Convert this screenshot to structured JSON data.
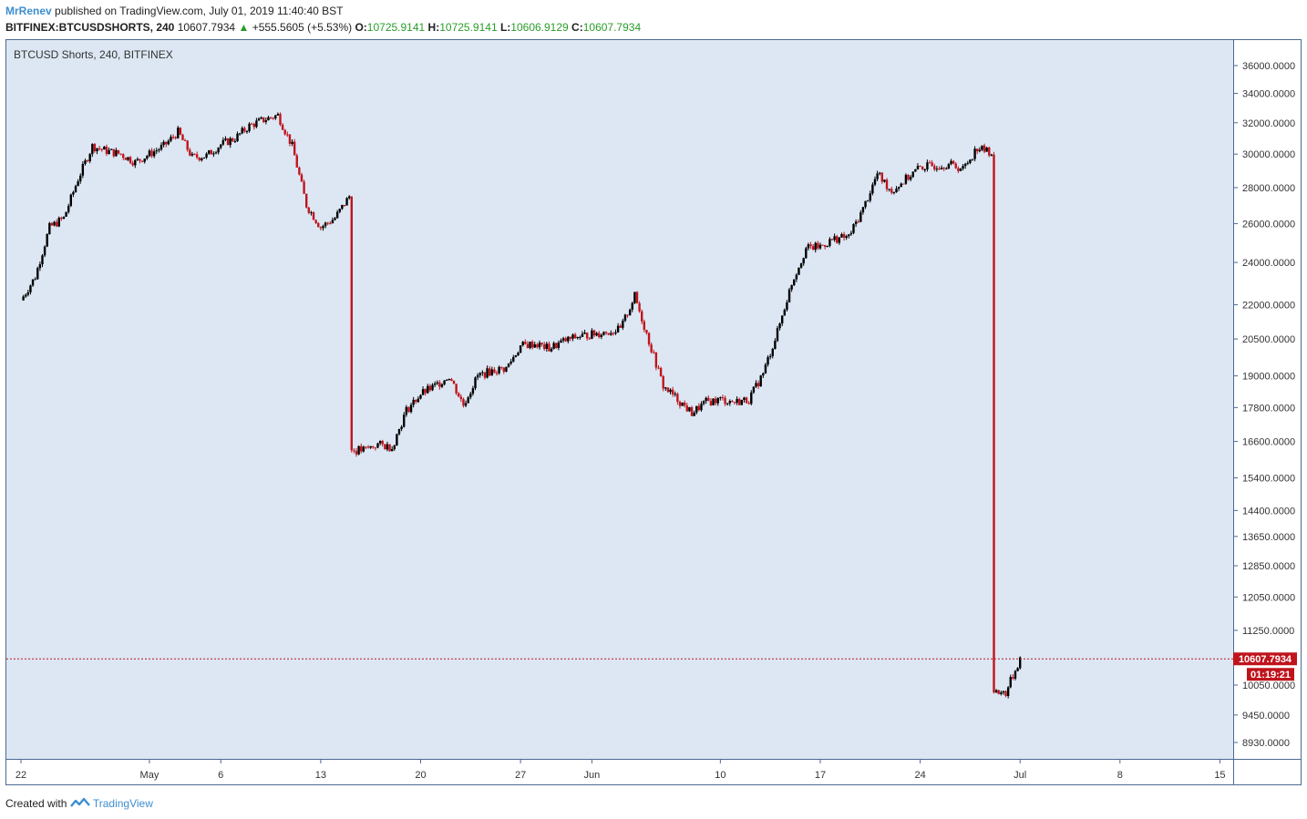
{
  "header": {
    "author": "MrRenev",
    "published_text": "published on TradingView.com, July 01, 2019 11:40:40 BST",
    "symbol": "BITFINEX:BTCUSDSHORTS, 240",
    "last_price": "10607.7934",
    "change": "+555.5605 (+5.53%)",
    "open_label": "O:",
    "open": "10725.9141",
    "high_label": "H:",
    "high": "10725.9141",
    "low_label": "L:",
    "low": "10606.9129",
    "close_label": "C:",
    "close": "10607.7934"
  },
  "footer": {
    "created_with": "Created with",
    "brand": "TradingView"
  },
  "chart_data": {
    "type": "candlestick",
    "title": "BTCUSD Shorts, 240, BITFINEX",
    "y_scale": "log",
    "ylim": [
      8600,
      37500
    ],
    "y_ticks": [
      "36000.0000",
      "34000.0000",
      "32000.0000",
      "30000.0000",
      "28000.0000",
      "26000.0000",
      "24000.0000",
      "22000.0000",
      "20500.0000",
      "19000.0000",
      "17800.0000",
      "16600.0000",
      "15400.0000",
      "14400.0000",
      "13650.0000",
      "12850.0000",
      "12050.0000",
      "11250.0000",
      "10050.0000",
      "9450.0000",
      "8930.0000"
    ],
    "x_ticks": [
      "22",
      "May",
      "6",
      "13",
      "20",
      "27",
      "Jun",
      "10",
      "17",
      "24",
      "Jul",
      "8",
      "15"
    ],
    "price_label": "10607.7934",
    "countdown_label": "01:19:21",
    "colors": {
      "up": "#000000",
      "down": "#c0141c",
      "background": "#dce7f3",
      "last_price_line": "#c0141c"
    },
    "series": [
      {
        "date": "2019-04-22",
        "close": 22200
      },
      {
        "date": "2019-04-23",
        "close": 23300
      },
      {
        "date": "2019-04-24",
        "close": 25800
      },
      {
        "date": "2019-04-25",
        "close": 26300
      },
      {
        "date": "2019-04-26",
        "close": 28500
      },
      {
        "date": "2019-04-27",
        "close": 30500
      },
      {
        "date": "2019-04-28",
        "close": 30200
      },
      {
        "date": "2019-04-29",
        "close": 30000
      },
      {
        "date": "2019-04-30",
        "close": 29500
      },
      {
        "date": "2019-05-01",
        "close": 30000
      },
      {
        "date": "2019-05-02",
        "close": 30500
      },
      {
        "date": "2019-05-03",
        "close": 31400
      },
      {
        "date": "2019-05-04",
        "close": 29800
      },
      {
        "date": "2019-05-05",
        "close": 29900
      },
      {
        "date": "2019-05-06",
        "close": 30600
      },
      {
        "date": "2019-05-07",
        "close": 31000
      },
      {
        "date": "2019-05-08",
        "close": 31800
      },
      {
        "date": "2019-05-09",
        "close": 32200
      },
      {
        "date": "2019-05-10",
        "close": 32500
      },
      {
        "date": "2019-05-11",
        "close": 30500
      },
      {
        "date": "2019-05-12",
        "close": 27000
      },
      {
        "date": "2019-05-13",
        "close": 25800
      },
      {
        "date": "2019-05-14",
        "close": 26300
      },
      {
        "date": "2019-05-15",
        "close": 27500
      },
      {
        "date": "2019-05-16",
        "close": 16300
      },
      {
        "date": "2019-05-17",
        "close": 16500
      },
      {
        "date": "2019-05-18",
        "close": 16400
      },
      {
        "date": "2019-05-19",
        "close": 17700
      },
      {
        "date": "2019-05-20",
        "close": 18300
      },
      {
        "date": "2019-05-21",
        "close": 18600
      },
      {
        "date": "2019-05-22",
        "close": 19000
      },
      {
        "date": "2019-05-23",
        "close": 17900
      },
      {
        "date": "2019-05-24",
        "close": 19000
      },
      {
        "date": "2019-05-25",
        "close": 19200
      },
      {
        "date": "2019-05-26",
        "close": 19300
      },
      {
        "date": "2019-05-27",
        "close": 20200
      },
      {
        "date": "2019-05-28",
        "close": 20300
      },
      {
        "date": "2019-05-29",
        "close": 20100
      },
      {
        "date": "2019-05-30",
        "close": 20400
      },
      {
        "date": "2019-05-31",
        "close": 20600
      },
      {
        "date": "2019-06-01",
        "close": 20700
      },
      {
        "date": "2019-06-02",
        "close": 20800
      },
      {
        "date": "2019-06-03",
        "close": 20900
      },
      {
        "date": "2019-06-04",
        "close": 22400
      },
      {
        "date": "2019-06-05",
        "close": 20400
      },
      {
        "date": "2019-06-06",
        "close": 18600
      },
      {
        "date": "2019-06-07",
        "close": 18100
      },
      {
        "date": "2019-06-08",
        "close": 17600
      },
      {
        "date": "2019-06-09",
        "close": 18000
      },
      {
        "date": "2019-06-10",
        "close": 18100
      },
      {
        "date": "2019-06-11",
        "close": 18000
      },
      {
        "date": "2019-06-12",
        "close": 18100
      },
      {
        "date": "2019-06-13",
        "close": 19100
      },
      {
        "date": "2019-06-14",
        "close": 20800
      },
      {
        "date": "2019-06-15",
        "close": 23000
      },
      {
        "date": "2019-06-16",
        "close": 24700
      },
      {
        "date": "2019-06-17",
        "close": 24800
      },
      {
        "date": "2019-06-18",
        "close": 25200
      },
      {
        "date": "2019-06-19",
        "close": 25300
      },
      {
        "date": "2019-06-20",
        "close": 26800
      },
      {
        "date": "2019-06-21",
        "close": 28800
      },
      {
        "date": "2019-06-22",
        "close": 27800
      },
      {
        "date": "2019-06-23",
        "close": 28500
      },
      {
        "date": "2019-06-24",
        "close": 29200
      },
      {
        "date": "2019-06-25",
        "close": 29300
      },
      {
        "date": "2019-06-26",
        "close": 29400
      },
      {
        "date": "2019-06-27",
        "close": 29100
      },
      {
        "date": "2019-06-28",
        "close": 30400
      },
      {
        "date": "2019-06-29",
        "close": 30100
      },
      {
        "date": "2019-06-30",
        "close": 9900
      },
      {
        "date": "2019-07-01",
        "close": 10608
      }
    ]
  }
}
